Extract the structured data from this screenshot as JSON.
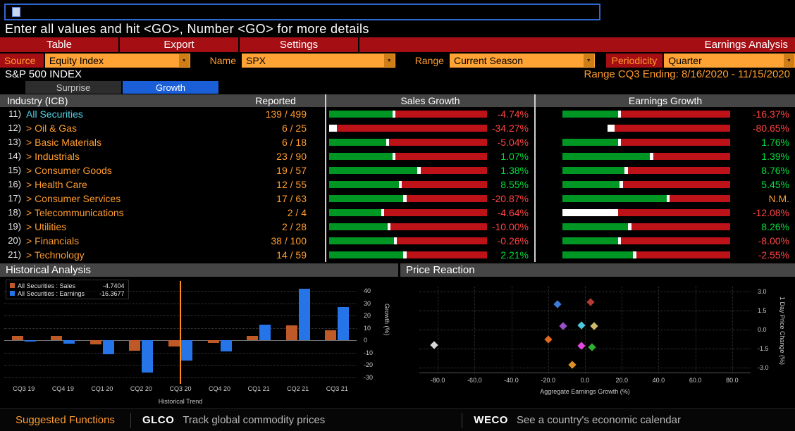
{
  "command": {
    "hint": "Enter all values and hit <GO>, Number <GO> for more details"
  },
  "toolbar": {
    "items": [
      "Table",
      "Export",
      "Settings"
    ],
    "title": "Earnings Analysis"
  },
  "filters": {
    "source_label": "Source",
    "source_value": "Equity Index",
    "name_label": "Name",
    "name_value": "SPX",
    "range_label": "Range",
    "range_value": "Current Season",
    "periodicity_label": "Periodicity",
    "periodicity_value": "Quarter"
  },
  "info": {
    "index_name": "S&P 500 INDEX",
    "range_text": "Range CQ3 Ending: 8/16/2020 - 11/15/2020"
  },
  "tabs": [
    {
      "label": "Surprise",
      "active": false
    },
    {
      "label": "Growth",
      "active": true
    }
  ],
  "table": {
    "headers": {
      "industry": "Industry (ICB)",
      "reported": "Reported",
      "sales": "Sales Growth",
      "earnings": "Earnings Growth"
    },
    "rows": [
      {
        "num": "11)",
        "name": "All Securities",
        "highlight": true,
        "reported": "139 / 499",
        "sales_value": "-4.74%",
        "sales_bar": [
          [
            "g",
            0.4
          ],
          [
            "w",
            0.02
          ],
          [
            "r",
            0.58
          ]
        ],
        "earnings_value": "-16.37%",
        "earnings_bar": [
          [
            "g",
            0.33
          ],
          [
            "w",
            0.02
          ],
          [
            "r",
            0.65
          ]
        ]
      },
      {
        "num": "12)",
        "name": "> Oil & Gas",
        "reported": "6 / 25",
        "sales_value": "-34.27%",
        "sales_bar": [
          [
            "w",
            0.05
          ],
          [
            "r",
            0.95
          ]
        ],
        "earnings_value": "-80.65%",
        "earnings_bar": [
          [
            "k",
            0.27
          ],
          [
            "w",
            0.04
          ],
          [
            "r",
            0.69
          ]
        ]
      },
      {
        "num": "13)",
        "name": "> Basic Materials",
        "reported": "6 / 18",
        "sales_value": "-5.04%",
        "sales_bar": [
          [
            "g",
            0.36
          ],
          [
            "w",
            0.02
          ],
          [
            "r",
            0.62
          ]
        ],
        "earnings_value": "1.76%",
        "earnings_bar": [
          [
            "g",
            0.33
          ],
          [
            "w",
            0.02
          ],
          [
            "r",
            0.65
          ]
        ]
      },
      {
        "num": "14)",
        "name": "> Industrials",
        "reported": "23 / 90",
        "sales_value": "1.07%",
        "sales_bar": [
          [
            "g",
            0.4
          ],
          [
            "w",
            0.02
          ],
          [
            "r",
            0.58
          ]
        ],
        "earnings_value": "1.39%",
        "earnings_bar": [
          [
            "g",
            0.52
          ],
          [
            "w",
            0.02
          ],
          [
            "r",
            0.46
          ]
        ]
      },
      {
        "num": "15)",
        "name": "> Consumer Goods",
        "reported": "19 / 57",
        "sales_value": "1.38%",
        "sales_bar": [
          [
            "g",
            0.56
          ],
          [
            "w",
            0.02
          ],
          [
            "r",
            0.42
          ]
        ],
        "earnings_value": "8.76%",
        "earnings_bar": [
          [
            "g",
            0.37
          ],
          [
            "w",
            0.02
          ],
          [
            "r",
            0.61
          ]
        ]
      },
      {
        "num": "16)",
        "name": "> Health Care",
        "reported": "12 / 55",
        "sales_value": "8.55%",
        "sales_bar": [
          [
            "g",
            0.44
          ],
          [
            "w",
            0.02
          ],
          [
            "r",
            0.54
          ]
        ],
        "earnings_value": "5.45%",
        "earnings_bar": [
          [
            "g",
            0.34
          ],
          [
            "w",
            0.02
          ],
          [
            "r",
            0.64
          ]
        ]
      },
      {
        "num": "17)",
        "name": "> Consumer Services",
        "reported": "17 / 63",
        "sales_value": "-20.87%",
        "sales_bar": [
          [
            "g",
            0.47
          ],
          [
            "w",
            0.02
          ],
          [
            "r",
            0.51
          ]
        ],
        "earnings_value": "N.M.",
        "earnings_bar": [
          [
            "g",
            0.62
          ],
          [
            "w",
            0.02
          ],
          [
            "r",
            0.36
          ]
        ]
      },
      {
        "num": "18)",
        "name": "> Telecommunications",
        "reported": "2 / 4",
        "sales_value": "-4.64%",
        "sales_bar": [
          [
            "g",
            0.33
          ],
          [
            "w",
            0.02
          ],
          [
            "r",
            0.65
          ]
        ],
        "earnings_value": "-12.08%",
        "earnings_bar": [
          [
            "w",
            0.33
          ],
          [
            "r",
            0.67
          ]
        ]
      },
      {
        "num": "19)",
        "name": "> Utilities",
        "reported": "2 / 28",
        "sales_value": "-10.00%",
        "sales_bar": [
          [
            "g",
            0.37
          ],
          [
            "w",
            0.02
          ],
          [
            "r",
            0.61
          ]
        ],
        "earnings_value": "8.26%",
        "earnings_bar": [
          [
            "g",
            0.39
          ],
          [
            "w",
            0.02
          ],
          [
            "r",
            0.59
          ]
        ]
      },
      {
        "num": "20)",
        "name": "> Financials",
        "reported": "38 / 100",
        "sales_value": "-0.26%",
        "sales_bar": [
          [
            "g",
            0.41
          ],
          [
            "w",
            0.02
          ],
          [
            "r",
            0.57
          ]
        ],
        "earnings_value": "-8.00%",
        "earnings_bar": [
          [
            "g",
            0.33
          ],
          [
            "w",
            0.02
          ],
          [
            "r",
            0.65
          ]
        ]
      },
      {
        "num": "21)",
        "name": "> Technology",
        "reported": "14 / 59",
        "sales_value": "2.21%",
        "sales_bar": [
          [
            "g",
            0.47
          ],
          [
            "w",
            0.02
          ],
          [
            "r",
            0.51
          ]
        ],
        "earnings_value": "-2.55%",
        "earnings_bar": [
          [
            "g",
            0.42
          ],
          [
            "w",
            0.02
          ],
          [
            "r",
            0.56
          ]
        ]
      }
    ]
  },
  "chart_data": [
    {
      "id": "historical",
      "type": "bar",
      "title": "Historical Analysis",
      "categories": [
        "CQ3 19",
        "CQ4 19",
        "CQ1 20",
        "CQ2 20",
        "CQ3 20",
        "CQ4 20",
        "CQ1 21",
        "CQ2 21",
        "CQ3 21"
      ],
      "series": [
        {
          "name": "All Securities : Sales",
          "color": "#bf5a28",
          "values": [
            3.5,
            3.5,
            -3,
            -8.5,
            -4.7404,
            -2,
            3.5,
            12,
            8.5
          ]
        },
        {
          "name": "All Securities : Earnings",
          "color": "#2574e8",
          "values": [
            -1,
            -2.5,
            -11,
            -26,
            -16.3677,
            -9,
            13,
            42,
            27
          ]
        }
      ],
      "legend_values": [
        "-4.7404",
        "-16.3677"
      ],
      "yticks": [
        {
          "v": 40,
          "label": "40"
        },
        {
          "v": 30,
          "label": "30"
        },
        {
          "v": 20,
          "label": "20"
        },
        {
          "v": 10,
          "label": "10"
        },
        {
          "v": 0,
          "label": "0"
        },
        {
          "v": -10,
          "label": "-10"
        },
        {
          "v": -20,
          "label": "-20"
        },
        {
          "v": -30,
          "label": "-30"
        }
      ],
      "ylim": [
        -33,
        46
      ],
      "ylabel": "Growth (%)",
      "xlabel": "Historical Trend",
      "grid": true,
      "legend_position": "top-left",
      "highlight_index": 4,
      "highlight_color": "#ff8c1a"
    },
    {
      "id": "price_reaction",
      "type": "scatter",
      "title": "Price Reaction",
      "xlabel": "Aggregate Earnings Growth (%)",
      "ylabel": "1 Day Price Change (%)",
      "xlim": [
        -90,
        90
      ],
      "ylim": [
        -3.4,
        3.4
      ],
      "grid": true,
      "xticks": [
        {
          "v": -80,
          "label": "-80.0"
        },
        {
          "v": -60,
          "label": "-60.0"
        },
        {
          "v": -40,
          "label": "-40.0"
        },
        {
          "v": -20,
          "label": "-20.0"
        },
        {
          "v": 0,
          "label": "0.0"
        },
        {
          "v": 20,
          "label": "20.0"
        },
        {
          "v": 40,
          "label": "40.0"
        },
        {
          "v": 60,
          "label": "60.0"
        },
        {
          "v": 80,
          "label": "80.0"
        }
      ],
      "yticks": [
        {
          "v": 3,
          "label": "3.0"
        },
        {
          "v": 1.5,
          "label": "1.5"
        },
        {
          "v": 0,
          "label": "0.0"
        },
        {
          "v": -1.5,
          "label": "-1.5"
        },
        {
          "v": -3,
          "label": "-3.0"
        }
      ],
      "points": [
        {
          "x": -82,
          "y": -1.2,
          "color": "#d8d8d8"
        },
        {
          "x": -15,
          "y": 2.0,
          "color": "#3c7cd8"
        },
        {
          "x": 3,
          "y": 2.2,
          "color": "#b23b34"
        },
        {
          "x": -12,
          "y": 0.3,
          "color": "#9b4fc8"
        },
        {
          "x": -2,
          "y": 0.35,
          "color": "#4cc8e0"
        },
        {
          "x": 5,
          "y": 0.3,
          "color": "#cdb96a"
        },
        {
          "x": -20,
          "y": -0.8,
          "color": "#e06820"
        },
        {
          "x": -2,
          "y": -1.3,
          "color": "#e048e0"
        },
        {
          "x": 4,
          "y": -1.4,
          "color": "#30b030"
        },
        {
          "x": -7,
          "y": -2.8,
          "color": "#e09028"
        }
      ]
    }
  ],
  "footer": {
    "title": "Suggested Functions",
    "items": [
      {
        "code": "GLCO",
        "desc": "Track global commodity prices"
      },
      {
        "code": "WECO",
        "desc": "See a country's economic calendar"
      }
    ]
  },
  "colors": {
    "toolbar_red": "#a50e13",
    "amber_dropdown": "#ffa335",
    "orange_text": "#ff9b2e",
    "highlight_cyan": "#4fd2e8",
    "active_tab_blue": "#1a5fd8",
    "positive_green": "#00dd3c",
    "negative_red": "#ff4343",
    "bar_segments": {
      "g": "#009623",
      "w": "#ffffff",
      "r": "#bc1218",
      "k": "transparent"
    }
  }
}
